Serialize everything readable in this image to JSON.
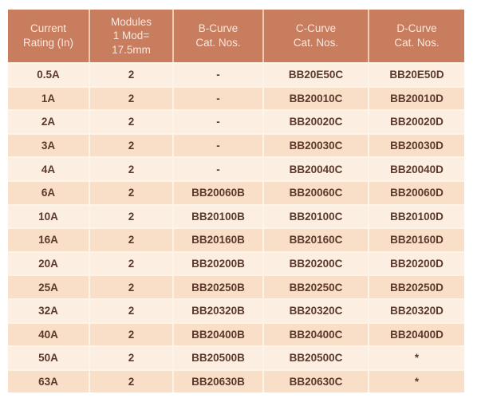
{
  "colors": {
    "header_bg": "#C97D5F",
    "header_text": "#F9E7DE",
    "header_divider": "#EFC9B2",
    "row_light": "#FCEFE2",
    "row_peach": "#FADFC8",
    "cell_text": "#5C392C",
    "cell_divider": "#FDF4E8",
    "page_bg": "#FFFFFF"
  },
  "table": {
    "columns": [
      "Current\nRating (In)",
      "Modules\n1 Mod=\n17.5mm",
      "B-Curve\nCat. Nos.",
      "C-Curve\nCat. Nos.",
      "D-Curve\nCat. Nos."
    ],
    "rows": [
      [
        "0.5A",
        "2",
        "-",
        "BB20E50C",
        "BB20E50D"
      ],
      [
        "1A",
        "2",
        "-",
        "BB20010C",
        "BB20010D"
      ],
      [
        "2A",
        "2",
        "-",
        "BB20020C",
        "BB20020D"
      ],
      [
        "3A",
        "2",
        "-",
        "BB20030C",
        "BB20030D"
      ],
      [
        "4A",
        "2",
        "-",
        "BB20040C",
        "BB20040D"
      ],
      [
        "6A",
        "2",
        "BB20060B",
        "BB20060C",
        "BB20060D"
      ],
      [
        "10A",
        "2",
        "BB20100B",
        "BB20100C",
        "BB20100D"
      ],
      [
        "16A",
        "2",
        "BB20160B",
        "BB20160C",
        "BB20160D"
      ],
      [
        "20A",
        "2",
        "BB20200B",
        "BB20200C",
        "BB20200D"
      ],
      [
        "25A",
        "2",
        "BB20250B",
        "BB20250C",
        "BB20250D"
      ],
      [
        "32A",
        "2",
        "BB20320B",
        "BB20320C",
        "BB20320D"
      ],
      [
        "40A",
        "2",
        "BB20400B",
        "BB20400C",
        "BB20400D"
      ],
      [
        "50A",
        "2",
        "BB20500B",
        "BB20500C",
        "*"
      ],
      [
        "63A",
        "2",
        "BB20630B",
        "BB20630C",
        "*"
      ]
    ]
  }
}
